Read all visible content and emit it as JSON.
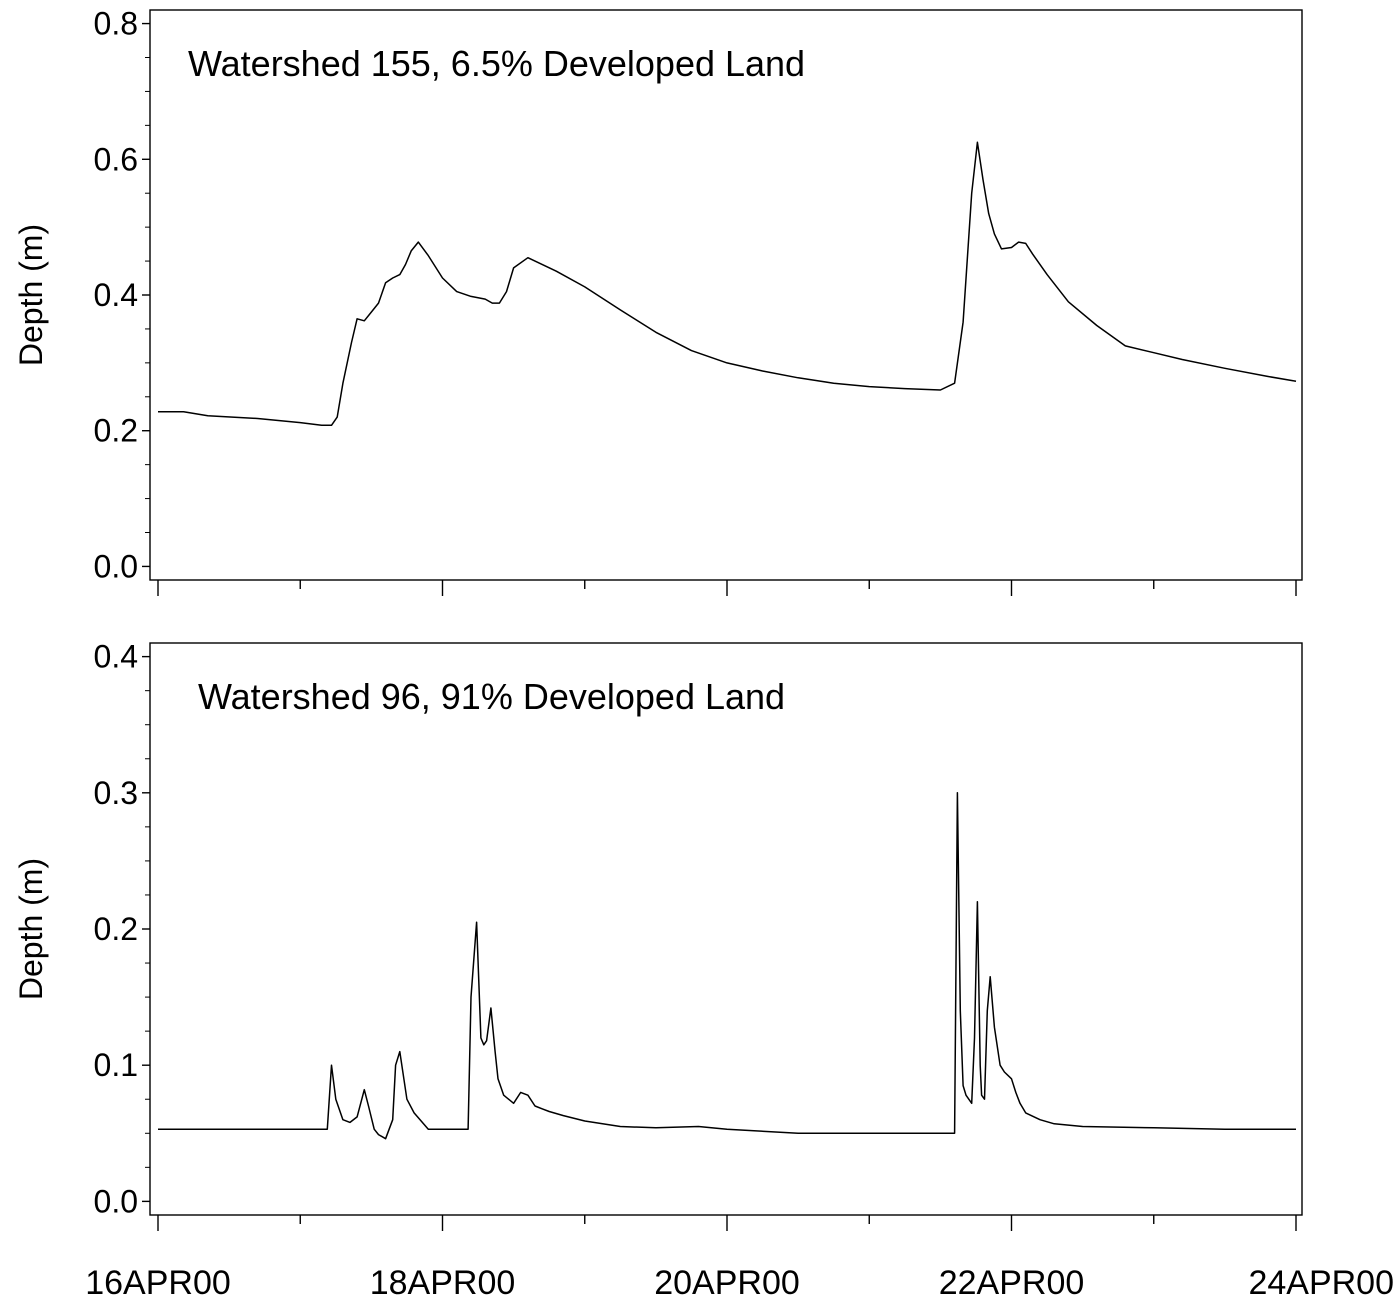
{
  "chart_data": {
    "type": "line",
    "shared_x_axis": {
      "tick_labels": [
        "16APR00",
        "18APR00",
        "20APR00",
        "22APR00",
        "24APR00"
      ],
      "range_days": [
        0,
        8
      ],
      "label": ""
    },
    "panels": [
      {
        "title": "Watershed 155, 6.5% Developed Land",
        "ylabel": "Depth (m)",
        "ylim": [
          -0.02,
          0.82
        ],
        "yticks": [
          "0.0",
          "0.2",
          "0.4",
          "0.6",
          "0.8"
        ],
        "grid": false,
        "series": [
          {
            "x": [
              0,
              0.18,
              0.35,
              0.7,
              1.0,
              1.15,
              1.22,
              1.26,
              1.3,
              1.36,
              1.4,
              1.45,
              1.5,
              1.55,
              1.6,
              1.65,
              1.7,
              1.74,
              1.78,
              1.83,
              1.9,
              2.0,
              2.1,
              2.2,
              2.25,
              2.3,
              2.35,
              2.4,
              2.45,
              2.5,
              2.6,
              2.8,
              3.0,
              3.25,
              3.5,
              3.75,
              4.0,
              4.25,
              4.5,
              4.75,
              5.0,
              5.25,
              5.5,
              5.6,
              5.66,
              5.72,
              5.76,
              5.8,
              5.84,
              5.88,
              5.93,
              6.0,
              6.05,
              6.1,
              6.15,
              6.25,
              6.4,
              6.6,
              6.8,
              7.0,
              7.2,
              7.5,
              7.8,
              8.0
            ],
            "y": [
              0.228,
              0.228,
              0.222,
              0.218,
              0.212,
              0.208,
              0.208,
              0.22,
              0.27,
              0.33,
              0.365,
              0.362,
              0.375,
              0.388,
              0.418,
              0.425,
              0.43,
              0.445,
              0.465,
              0.478,
              0.458,
              0.425,
              0.405,
              0.398,
              0.396,
              0.394,
              0.388,
              0.388,
              0.405,
              0.44,
              0.455,
              0.435,
              0.412,
              0.378,
              0.345,
              0.318,
              0.3,
              0.288,
              0.278,
              0.27,
              0.265,
              0.262,
              0.26,
              0.27,
              0.36,
              0.55,
              0.625,
              0.57,
              0.52,
              0.49,
              0.468,
              0.47,
              0.478,
              0.476,
              0.46,
              0.43,
              0.39,
              0.355,
              0.325,
              0.315,
              0.305,
              0.292,
              0.28,
              0.273
            ]
          }
        ]
      },
      {
        "title": "Watershed 96, 91% Developed Land",
        "ylabel": "Depth (m)",
        "ylim": [
          -0.01,
          0.41
        ],
        "yticks": [
          "0.0",
          "0.1",
          "0.2",
          "0.3",
          "0.4"
        ],
        "grid": false,
        "series": [
          {
            "x": [
              0,
              0.5,
              1.0,
              1.16,
              1.19,
              1.22,
              1.25,
              1.3,
              1.35,
              1.4,
              1.45,
              1.48,
              1.52,
              1.55,
              1.6,
              1.65,
              1.67,
              1.7,
              1.75,
              1.8,
              1.9,
              2.0,
              2.18,
              2.2,
              2.24,
              2.27,
              2.29,
              2.31,
              2.34,
              2.37,
              2.39,
              2.43,
              2.5,
              2.55,
              2.6,
              2.65,
              2.7,
              2.75,
              2.85,
              3.0,
              3.25,
              3.5,
              3.8,
              4.0,
              4.5,
              5.0,
              5.6,
              5.61,
              5.62,
              5.64,
              5.66,
              5.68,
              5.72,
              5.74,
              5.76,
              5.78,
              5.79,
              5.81,
              5.83,
              5.85,
              5.88,
              5.92,
              5.95,
              6.0,
              6.03,
              6.06,
              6.1,
              6.2,
              6.3,
              6.5,
              7.0,
              7.5,
              8.0
            ],
            "y": [
              0.053,
              0.053,
              0.053,
              0.053,
              0.053,
              0.1,
              0.075,
              0.06,
              0.058,
              0.062,
              0.082,
              0.07,
              0.053,
              0.049,
              0.046,
              0.06,
              0.1,
              0.11,
              0.075,
              0.065,
              0.053,
              0.053,
              0.053,
              0.15,
              0.205,
              0.12,
              0.115,
              0.118,
              0.142,
              0.11,
              0.09,
              0.078,
              0.072,
              0.08,
              0.078,
              0.07,
              0.068,
              0.066,
              0.063,
              0.059,
              0.055,
              0.054,
              0.055,
              0.053,
              0.05,
              0.05,
              0.05,
              0.175,
              0.3,
              0.14,
              0.085,
              0.078,
              0.072,
              0.12,
              0.22,
              0.1,
              0.078,
              0.075,
              0.14,
              0.165,
              0.128,
              0.1,
              0.095,
              0.09,
              0.08,
              0.072,
              0.065,
              0.06,
              0.057,
              0.055,
              0.054,
              0.053,
              0.053
            ]
          }
        ]
      }
    ]
  }
}
